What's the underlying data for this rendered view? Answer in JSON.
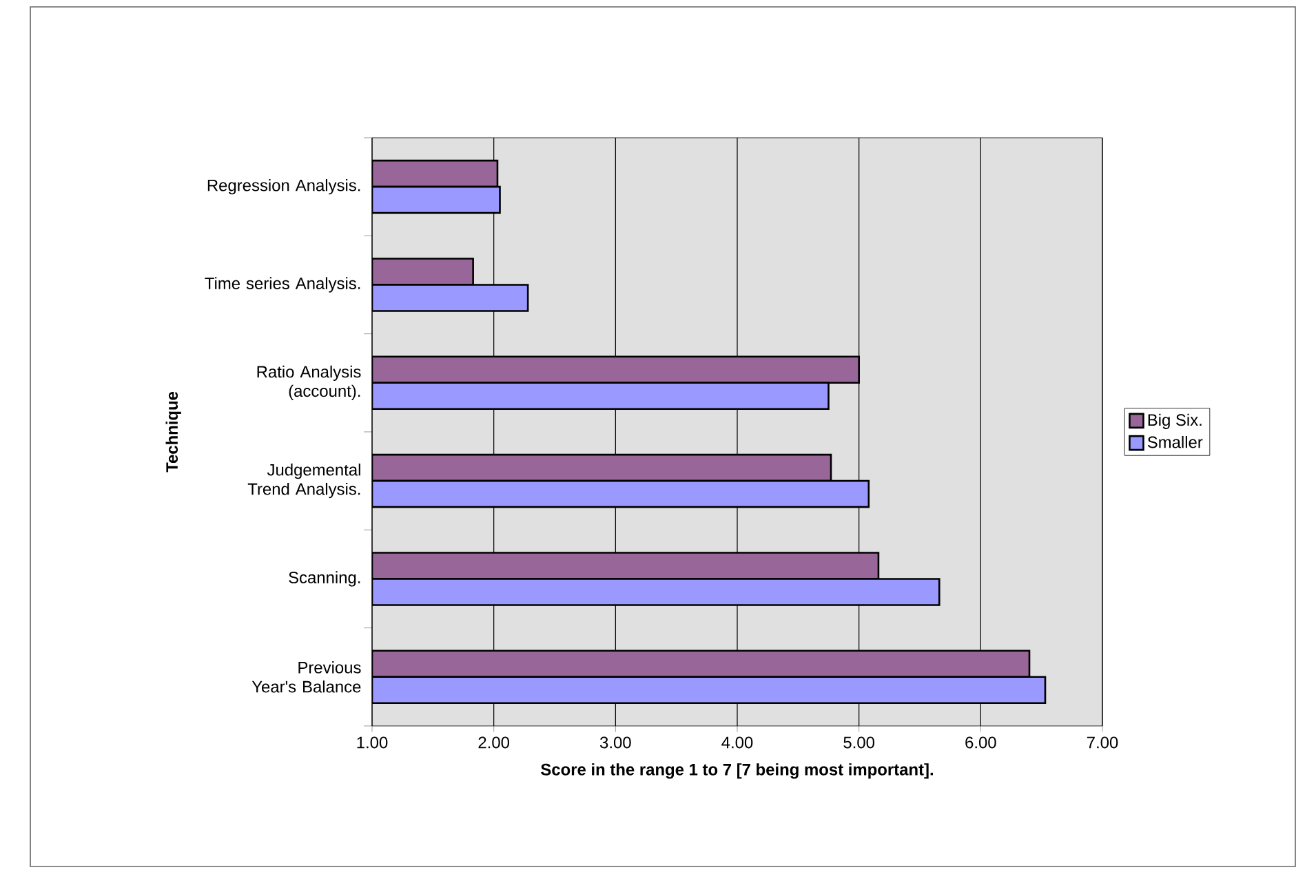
{
  "chart_data": {
    "type": "bar",
    "orientation": "horizontal",
    "xlabel": "Score in the range 1 to 7 [7 being most important].",
    "ylabel": "Technique",
    "categories": [
      "Regression Analysis.",
      "Time series Analysis.",
      "Ratio Analysis (account).",
      "Judgemental Trend Analysis.",
      "Scanning.",
      "Previous Year's Balance"
    ],
    "series": [
      {
        "name": "Big Six.",
        "color": "#996699",
        "values": [
          2.03,
          1.83,
          5.0,
          4.77,
          5.16,
          6.4
        ]
      },
      {
        "name": "Smaller",
        "color": "#9999ff",
        "values": [
          2.05,
          2.28,
          4.75,
          5.08,
          5.66,
          6.53
        ]
      }
    ],
    "xlim": [
      1,
      7
    ],
    "xticks": [
      {
        "value": 1,
        "label": "1.00"
      },
      {
        "value": 2,
        "label": "2.00"
      },
      {
        "value": 3,
        "label": "3.00"
      },
      {
        "value": 4,
        "label": "4.00"
      },
      {
        "value": 5,
        "label": "5.00"
      },
      {
        "value": 6,
        "label": "6.00"
      },
      {
        "value": 7,
        "label": "7.00"
      }
    ],
    "grid": "x",
    "legend": "right"
  }
}
